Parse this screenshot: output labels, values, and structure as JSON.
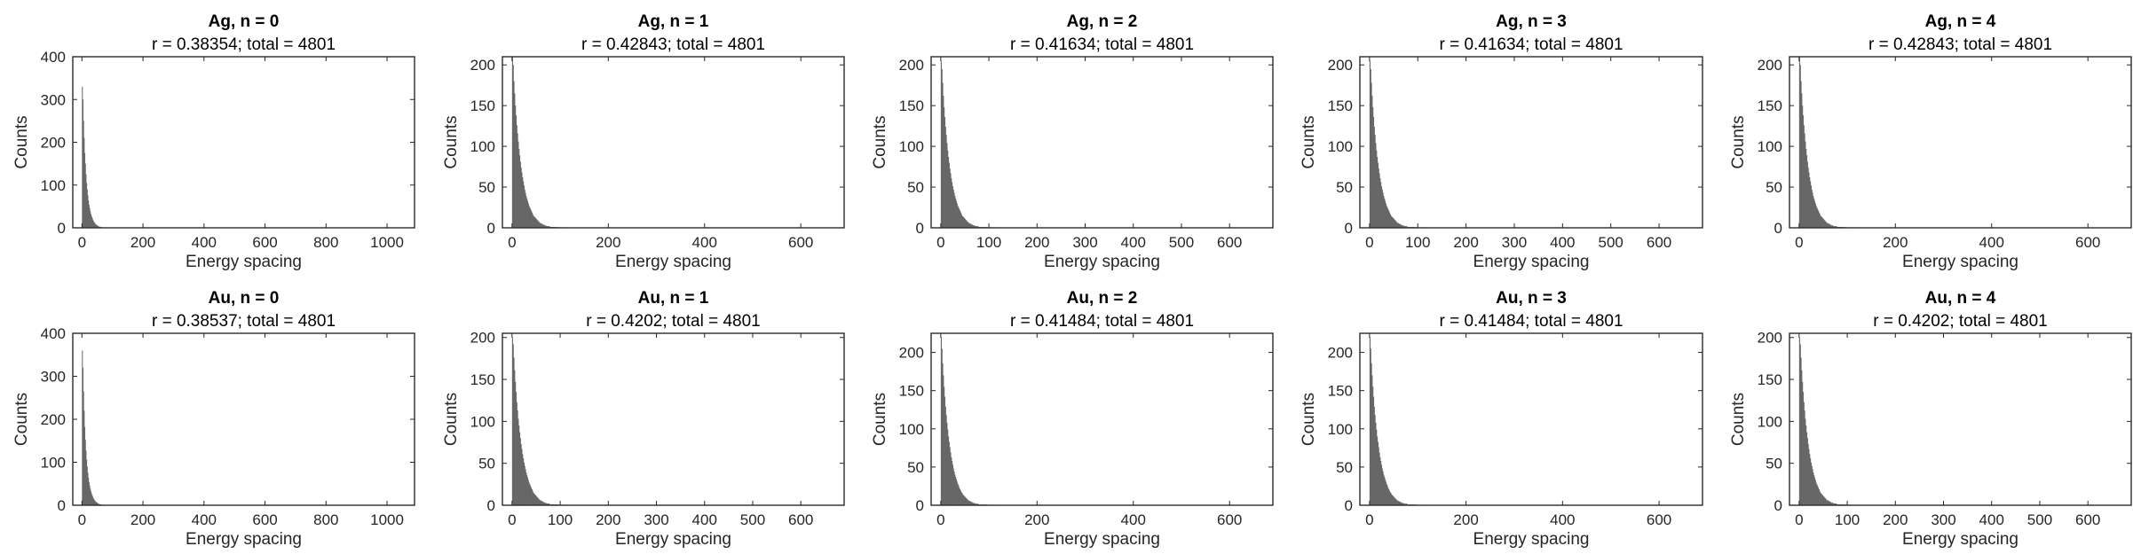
{
  "chart_data": [
    {
      "type": "bar",
      "title": "Ag, n = 0",
      "subtitle": "r = 0.38354; total = 4801",
      "xlabel": "Energy spacing",
      "ylabel": "Counts",
      "xlim": [
        -30,
        1090
      ],
      "ylim": [
        0,
        400
      ],
      "xticks": [
        0,
        200,
        400,
        600,
        800,
        1000
      ],
      "yticks": [
        0,
        100,
        200,
        300,
        400
      ],
      "bin_width": 2,
      "decay_scale": 15,
      "color": "#666666",
      "values": [
        330,
        300,
        250,
        210,
        175,
        150,
        125,
        105,
        90,
        76,
        64,
        54,
        46,
        39,
        33,
        28,
        24,
        20,
        17,
        14,
        12,
        10,
        8,
        7,
        6,
        5,
        4,
        3,
        3,
        2,
        2,
        2,
        1,
        1,
        1,
        1,
        1,
        1,
        1,
        1
      ]
    },
    {
      "type": "bar",
      "title": "Ag, n = 1",
      "subtitle": "r = 0.42843; total = 4801",
      "xlabel": "Energy spacing",
      "ylabel": "Counts",
      "xlim": [
        -20,
        690
      ],
      "ylim": [
        0,
        210
      ],
      "xticks": [
        0,
        200,
        400,
        600
      ],
      "yticks": [
        0,
        50,
        100,
        150,
        200
      ],
      "bin_width": 1.5,
      "decay_scale": 20,
      "color": "#666666",
      "values": [
        210,
        200,
        180,
        165,
        150,
        138,
        126,
        116,
        106,
        97,
        89,
        81,
        74,
        68,
        62,
        57,
        52,
        47,
        43,
        39,
        36,
        33,
        30,
        27,
        25,
        23,
        21,
        19,
        17,
        15,
        14,
        13,
        12,
        11,
        10,
        9,
        8,
        7,
        6,
        6,
        5,
        5,
        4,
        4,
        3,
        3,
        3,
        2,
        2,
        2,
        2,
        2,
        1,
        1,
        1,
        1,
        1,
        1,
        1,
        1
      ]
    },
    {
      "type": "bar",
      "title": "Ag, n = 2",
      "subtitle": "r = 0.41634; total = 4801",
      "xlabel": "Energy spacing",
      "ylabel": "Counts",
      "xlim": [
        -20,
        690
      ],
      "ylim": [
        0,
        210
      ],
      "xticks": [
        0,
        100,
        200,
        300,
        400,
        500,
        600
      ],
      "yticks": [
        0,
        50,
        100,
        150,
        200
      ],
      "bin_width": 1.5,
      "decay_scale": 20,
      "color": "#666666",
      "values": [
        205,
        195,
        178,
        162,
        148,
        136,
        124,
        114,
        104,
        95,
        87,
        80,
        73,
        67,
        61,
        56,
        51,
        47,
        43,
        39,
        36,
        33,
        30,
        27,
        25,
        23,
        21,
        19,
        17,
        15,
        14,
        13,
        12,
        11,
        10,
        9,
        8,
        7,
        6,
        6,
        5,
        5,
        4,
        4,
        3,
        3,
        3,
        2,
        2,
        2,
        2,
        2,
        1,
        1,
        1,
        1,
        1,
        1,
        1,
        1
      ]
    },
    {
      "type": "bar",
      "title": "Ag, n = 3",
      "subtitle": "r = 0.41634; total = 4801",
      "xlabel": "Energy spacing",
      "ylabel": "Counts",
      "xlim": [
        -20,
        690
      ],
      "ylim": [
        0,
        210
      ],
      "xticks": [
        0,
        100,
        200,
        300,
        400,
        500,
        600
      ],
      "yticks": [
        0,
        50,
        100,
        150,
        200
      ],
      "bin_width": 1.5,
      "decay_scale": 20,
      "color": "#666666",
      "values": [
        205,
        195,
        178,
        162,
        148,
        136,
        124,
        114,
        104,
        95,
        87,
        80,
        73,
        67,
        61,
        56,
        51,
        47,
        43,
        39,
        36,
        33,
        30,
        27,
        25,
        23,
        21,
        19,
        17,
        15,
        14,
        13,
        12,
        11,
        10,
        9,
        8,
        7,
        6,
        6,
        5,
        5,
        4,
        4,
        3,
        3,
        3,
        2,
        2,
        2,
        2,
        2,
        1,
        1,
        1,
        1,
        1,
        1,
        1,
        1
      ]
    },
    {
      "type": "bar",
      "title": "Ag, n = 4",
      "subtitle": "r = 0.42843; total = 4801",
      "xlabel": "Energy spacing",
      "ylabel": "Counts",
      "xlim": [
        -20,
        690
      ],
      "ylim": [
        0,
        210
      ],
      "xticks": [
        0,
        200,
        400,
        600
      ],
      "yticks": [
        0,
        50,
        100,
        150,
        200
      ],
      "bin_width": 1.5,
      "decay_scale": 20,
      "color": "#666666",
      "values": [
        210,
        200,
        180,
        165,
        150,
        138,
        126,
        116,
        106,
        97,
        89,
        81,
        74,
        68,
        62,
        57,
        52,
        47,
        43,
        39,
        36,
        33,
        30,
        27,
        25,
        23,
        21,
        19,
        17,
        15,
        14,
        13,
        12,
        11,
        10,
        9,
        8,
        7,
        6,
        6,
        5,
        5,
        4,
        4,
        3,
        3,
        3,
        2,
        2,
        2,
        2,
        2,
        1,
        1,
        1,
        1,
        1,
        1,
        1,
        1
      ]
    },
    {
      "type": "bar",
      "title": "Au, n = 0",
      "subtitle": "r = 0.38537; total = 4801",
      "xlabel": "Energy spacing",
      "ylabel": "Counts",
      "xlim": [
        -30,
        1090
      ],
      "ylim": [
        0,
        400
      ],
      "xticks": [
        0,
        200,
        400,
        600,
        800,
        1000
      ],
      "yticks": [
        0,
        100,
        200,
        300,
        400
      ],
      "bin_width": 2,
      "decay_scale": 15,
      "color": "#666666",
      "values": [
        360,
        320,
        265,
        220,
        182,
        152,
        127,
        106,
        90,
        76,
        64,
        54,
        46,
        39,
        33,
        28,
        24,
        20,
        17,
        14,
        12,
        10,
        8,
        7,
        6,
        5,
        4,
        3,
        3,
        2,
        2,
        2,
        1,
        1,
        1,
        1,
        1,
        1,
        1,
        1
      ]
    },
    {
      "type": "bar",
      "title": "Au, n = 1",
      "subtitle": "r = 0.4202; total = 4801",
      "xlabel": "Energy spacing",
      "ylabel": "Counts",
      "xlim": [
        -20,
        690
      ],
      "ylim": [
        0,
        205
      ],
      "xticks": [
        0,
        100,
        200,
        300,
        400,
        500,
        600
      ],
      "yticks": [
        0,
        50,
        100,
        150,
        200
      ],
      "bin_width": 1.5,
      "decay_scale": 20,
      "color": "#666666",
      "values": [
        200,
        192,
        176,
        161,
        147,
        135,
        123,
        113,
        103,
        95,
        87,
        80,
        73,
        67,
        61,
        56,
        51,
        47,
        43,
        39,
        36,
        33,
        30,
        27,
        25,
        23,
        21,
        19,
        17,
        15,
        14,
        13,
        12,
        11,
        10,
        9,
        8,
        7,
        6,
        6,
        5,
        5,
        4,
        4,
        3,
        3,
        3,
        2,
        2,
        2,
        2,
        2,
        1,
        1,
        1,
        1,
        1,
        1,
        1,
        1
      ]
    },
    {
      "type": "bar",
      "title": "Au, n = 2",
      "subtitle": "r = 0.41484; total = 4801",
      "xlabel": "Energy spacing",
      "ylabel": "Counts",
      "xlim": [
        -20,
        690
      ],
      "ylim": [
        0,
        225
      ],
      "xticks": [
        0,
        200,
        400,
        600
      ],
      "yticks": [
        0,
        50,
        100,
        150,
        200
      ],
      "bin_width": 1.5,
      "decay_scale": 20,
      "color": "#666666",
      "values": [
        220,
        205,
        186,
        170,
        155,
        142,
        129,
        118,
        108,
        99,
        90,
        83,
        76,
        69,
        63,
        58,
        53,
        48,
        44,
        40,
        37,
        34,
        31,
        28,
        26,
        23,
        21,
        19,
        17,
        16,
        14,
        13,
        12,
        11,
        10,
        9,
        8,
        7,
        6,
        6,
        5,
        5,
        4,
        4,
        3,
        3,
        3,
        2,
        2,
        2,
        2,
        2,
        1,
        1,
        1,
        1,
        1,
        1,
        1,
        1
      ]
    },
    {
      "type": "bar",
      "title": "Au, n = 3",
      "subtitle": "r = 0.41484; total = 4801",
      "xlabel": "Energy spacing",
      "ylabel": "Counts",
      "xlim": [
        -20,
        690
      ],
      "ylim": [
        0,
        225
      ],
      "xticks": [
        0,
        200,
        400,
        600
      ],
      "yticks": [
        0,
        50,
        100,
        150,
        200
      ],
      "bin_width": 1.5,
      "decay_scale": 20,
      "color": "#666666",
      "values": [
        220,
        205,
        186,
        170,
        155,
        142,
        129,
        118,
        108,
        99,
        90,
        83,
        76,
        69,
        63,
        58,
        53,
        48,
        44,
        40,
        37,
        34,
        31,
        28,
        26,
        23,
        21,
        19,
        17,
        16,
        14,
        13,
        12,
        11,
        10,
        9,
        8,
        7,
        6,
        6,
        5,
        5,
        4,
        4,
        3,
        3,
        3,
        2,
        2,
        2,
        2,
        2,
        1,
        1,
        1,
        1,
        1,
        1,
        1,
        1
      ]
    },
    {
      "type": "bar",
      "title": "Au, n = 4",
      "subtitle": "r = 0.4202; total = 4801",
      "xlabel": "Energy spacing",
      "ylabel": "Counts",
      "xlim": [
        -20,
        690
      ],
      "ylim": [
        0,
        205
      ],
      "xticks": [
        0,
        100,
        200,
        300,
        400,
        500,
        600
      ],
      "yticks": [
        0,
        50,
        100,
        150,
        200
      ],
      "bin_width": 1.5,
      "decay_scale": 20,
      "color": "#666666",
      "values": [
        200,
        192,
        176,
        161,
        147,
        135,
        123,
        113,
        103,
        95,
        87,
        80,
        73,
        67,
        61,
        56,
        51,
        47,
        43,
        39,
        36,
        33,
        30,
        27,
        25,
        23,
        21,
        19,
        17,
        15,
        14,
        13,
        12,
        11,
        10,
        9,
        8,
        7,
        6,
        6,
        5,
        5,
        4,
        4,
        3,
        3,
        3,
        2,
        2,
        2,
        2,
        2,
        1,
        1,
        1,
        1,
        1,
        1,
        1,
        1
      ]
    }
  ]
}
